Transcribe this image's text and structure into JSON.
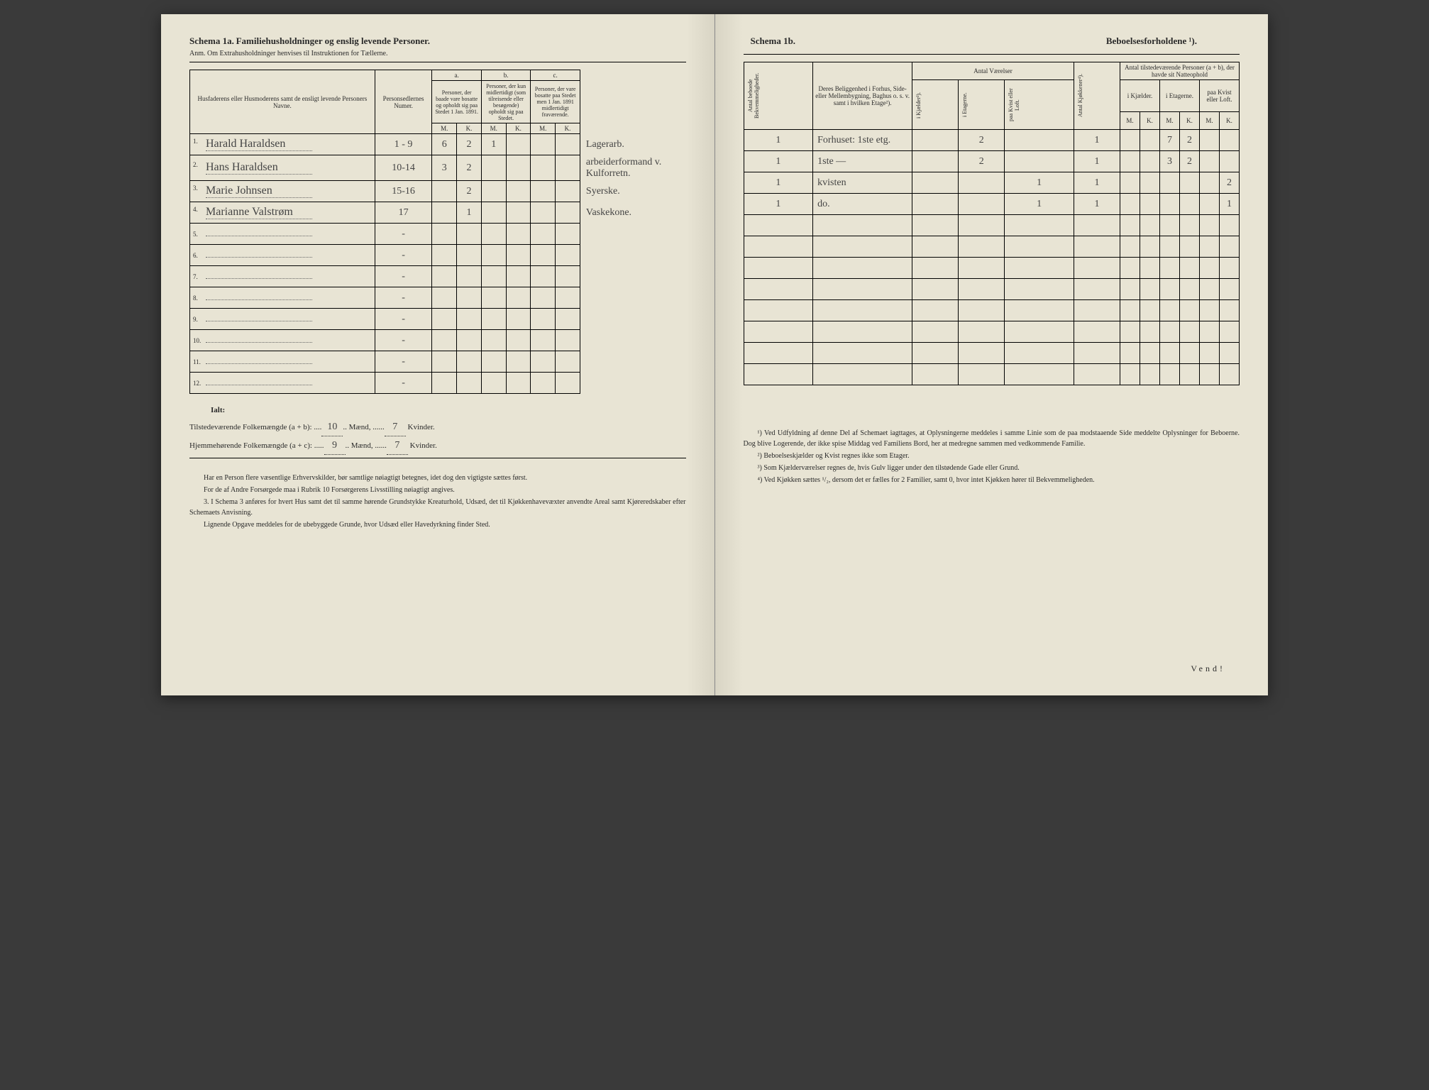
{
  "left": {
    "schema_title": "Schema 1a.",
    "schema_subtitle": "Familiehusholdninger og enslig levende Personer.",
    "anm": "Anm. Om Extrahusholdninger henvises til Instruktionen for Tællerne.",
    "headers": {
      "name": "Husfaderens eller Husmoderens samt de ensligt levende Personers Navne.",
      "num": "Personsedlernes Numer.",
      "a": "a.",
      "a_text": "Personer, der baade vare bosatte og opholdt sig paa Stedet 1 Jan. 1891.",
      "b": "b.",
      "b_text": "Personer, der kun midlertidigt (som tilreisende eller besøgende) opholdt sig paa Stedet.",
      "c": "c.",
      "c_text": "Personer, der vare bosatte paa Stedet men 1 Jan. 1891 midlertidigt fraværende.",
      "M": "M.",
      "K": "K."
    },
    "rows": [
      {
        "n": "1.",
        "name": "Harald Haraldsen",
        "num": "1 - 9",
        "aM": "6",
        "aK": "2",
        "bM": "1",
        "bK": "",
        "cM": "",
        "cK": "",
        "note": "Lagerarb."
      },
      {
        "n": "2.",
        "name": "Hans Haraldsen",
        "num": "10-14",
        "aM": "3",
        "aK": "2",
        "bM": "",
        "bK": "",
        "cM": "",
        "cK": "",
        "note": "arbeiderformand v. Kulforretn."
      },
      {
        "n": "3.",
        "name": "Marie Johnsen",
        "num": "15-16",
        "aM": "",
        "aK": "2",
        "bM": "",
        "bK": "",
        "cM": "",
        "cK": "",
        "note": "Syerske."
      },
      {
        "n": "4.",
        "name": "Marianne Valstrøm",
        "num": "17",
        "aM": "",
        "aK": "1",
        "bM": "",
        "bK": "",
        "cM": "",
        "cK": "",
        "note": "Vaskekone."
      },
      {
        "n": "5.",
        "name": "",
        "num": "-",
        "aM": "",
        "aK": "",
        "bM": "",
        "bK": "",
        "cM": "",
        "cK": "",
        "note": ""
      },
      {
        "n": "6.",
        "name": "",
        "num": "-",
        "aM": "",
        "aK": "",
        "bM": "",
        "bK": "",
        "cM": "",
        "cK": "",
        "note": ""
      },
      {
        "n": "7.",
        "name": "",
        "num": "-",
        "aM": "",
        "aK": "",
        "bM": "",
        "bK": "",
        "cM": "",
        "cK": "",
        "note": ""
      },
      {
        "n": "8.",
        "name": "",
        "num": "-",
        "aM": "",
        "aK": "",
        "bM": "",
        "bK": "",
        "cM": "",
        "cK": "",
        "note": ""
      },
      {
        "n": "9.",
        "name": "",
        "num": "-",
        "aM": "",
        "aK": "",
        "bM": "",
        "bK": "",
        "cM": "",
        "cK": "",
        "note": ""
      },
      {
        "n": "10.",
        "name": "",
        "num": "-",
        "aM": "",
        "aK": "",
        "bM": "",
        "bK": "",
        "cM": "",
        "cK": "",
        "note": ""
      },
      {
        "n": "11.",
        "name": "",
        "num": "-",
        "aM": "",
        "aK": "",
        "bM": "",
        "bK": "",
        "cM": "",
        "cK": "",
        "note": ""
      },
      {
        "n": "12.",
        "name": "",
        "num": "-",
        "aM": "",
        "aK": "",
        "bM": "",
        "bK": "",
        "cM": "",
        "cK": "",
        "note": ""
      }
    ],
    "totals": {
      "ialt": "Ialt:",
      "line1_label": "Tilstedeværende Folkemængde (a + b):",
      "line1_m": "10",
      "line1_mlabel": "Mænd,",
      "line1_k": "7",
      "line1_klabel": "Kvinder.",
      "line2_label": "Hjemmehørende Folkemængde (a + c):",
      "line2_m": "9",
      "line2_k": "7"
    },
    "footnotes": {
      "p1": "Har en Person flere væsentlige Erhvervskilder, bør samtlige nøiagtigt betegnes, idet dog den vigtigste sættes først.",
      "p2": "For de af Andre Forsørgede maa i Rubrik 10 Forsørgerens Livsstilling nøiagtigt angives.",
      "p3": "3. I Schema 3 anføres for hvert Hus samt det til samme hørende Grundstykke Kreaturhold, Udsæd, det til Kjøkkenhavevæxter anvendte Areal samt Kjøreredskaber efter Schemaets Anvisning.",
      "p4": "Lignende Opgave meddeles for de ubebyggede Grunde, hvor Udsæd eller Havedyrkning finder Sted."
    }
  },
  "right": {
    "schema_title": "Schema 1b.",
    "schema_subtitle": "Beboelsesforholdene ¹).",
    "headers": {
      "bekv": "Antal beboede Bekvemmeligheder.",
      "belig": "Deres Beliggenhed i Forhus, Side- eller Mellembygning, Baghus o. s. v. samt i hvilken Etage²).",
      "antal_v": "Antal Værelser",
      "kjeld": "i Kjælder³).",
      "etag": "i Etagerne.",
      "kvist": "paa Kvist eller Loft.",
      "kjok": "Antal Kjøkkener⁴).",
      "tilst": "Antal tilstedeværende Personer (a + b), der havde sit Natteophold",
      "ikjeld": "i Kjælder.",
      "ietag": "i Etagerne.",
      "pkvist": "paa Kvist eller Loft.",
      "M": "M.",
      "K": "K."
    },
    "rows": [
      {
        "bekv": "1",
        "belig": "Forhuset: 1ste etg.",
        "kj": "",
        "et": "2",
        "kv": "",
        "kk": "1",
        "km": "",
        "kkv": "",
        "em": "7",
        "ek": "2",
        "lm": "",
        "lk": ""
      },
      {
        "bekv": "1",
        "belig": "1ste —",
        "kj": "",
        "et": "2",
        "kv": "",
        "kk": "1",
        "km": "",
        "kkv": "",
        "em": "3",
        "ek": "2",
        "lm": "",
        "lk": ""
      },
      {
        "bekv": "1",
        "belig": "kvisten",
        "kj": "",
        "et": "",
        "kv": "1",
        "kk": "1",
        "km": "",
        "kkv": "",
        "em": "",
        "ek": "",
        "lm": "",
        "lk": "2"
      },
      {
        "bekv": "1",
        "belig": "do.",
        "kj": "",
        "et": "",
        "kv": "1",
        "kk": "1",
        "km": "",
        "kkv": "",
        "em": "",
        "ek": "",
        "lm": "",
        "lk": "1"
      },
      {
        "bekv": "",
        "belig": "",
        "kj": "",
        "et": "",
        "kv": "",
        "kk": "",
        "km": "",
        "kkv": "",
        "em": "",
        "ek": "",
        "lm": "",
        "lk": ""
      },
      {
        "bekv": "",
        "belig": "",
        "kj": "",
        "et": "",
        "kv": "",
        "kk": "",
        "km": "",
        "kkv": "",
        "em": "",
        "ek": "",
        "lm": "",
        "lk": ""
      },
      {
        "bekv": "",
        "belig": "",
        "kj": "",
        "et": "",
        "kv": "",
        "kk": "",
        "km": "",
        "kkv": "",
        "em": "",
        "ek": "",
        "lm": "",
        "lk": ""
      },
      {
        "bekv": "",
        "belig": "",
        "kj": "",
        "et": "",
        "kv": "",
        "kk": "",
        "km": "",
        "kkv": "",
        "em": "",
        "ek": "",
        "lm": "",
        "lk": ""
      },
      {
        "bekv": "",
        "belig": "",
        "kj": "",
        "et": "",
        "kv": "",
        "kk": "",
        "km": "",
        "kkv": "",
        "em": "",
        "ek": "",
        "lm": "",
        "lk": ""
      },
      {
        "bekv": "",
        "belig": "",
        "kj": "",
        "et": "",
        "kv": "",
        "kk": "",
        "km": "",
        "kkv": "",
        "em": "",
        "ek": "",
        "lm": "",
        "lk": ""
      },
      {
        "bekv": "",
        "belig": "",
        "kj": "",
        "et": "",
        "kv": "",
        "kk": "",
        "km": "",
        "kkv": "",
        "em": "",
        "ek": "",
        "lm": "",
        "lk": ""
      },
      {
        "bekv": "",
        "belig": "",
        "kj": "",
        "et": "",
        "kv": "",
        "kk": "",
        "km": "",
        "kkv": "",
        "em": "",
        "ek": "",
        "lm": "",
        "lk": ""
      }
    ],
    "footnotes": {
      "f1": "¹) Ved Udfyldning af denne Del af Schemaet iagttages, at Oplysningerne meddeles i samme Linie som de paa modstaaende Side meddelte Oplysninger for Beboerne. Dog blive Logerende, der ikke spise Middag ved Familiens Bord, her at medregne sammen med vedkommende Familie.",
      "f2": "²) Beboelseskjælder og Kvist regnes ikke som Etager.",
      "f3": "³) Som Kjælderværelser regnes de, hvis Gulv ligger under den tilstødende Gade eller Grund.",
      "f4": "⁴) Ved Kjøkken sættes ¹/₂, dersom det er fælles for 2 Familier, samt 0, hvor intet Kjøkken hører til Bekvemmeligheden."
    },
    "vend": "Vend!"
  }
}
